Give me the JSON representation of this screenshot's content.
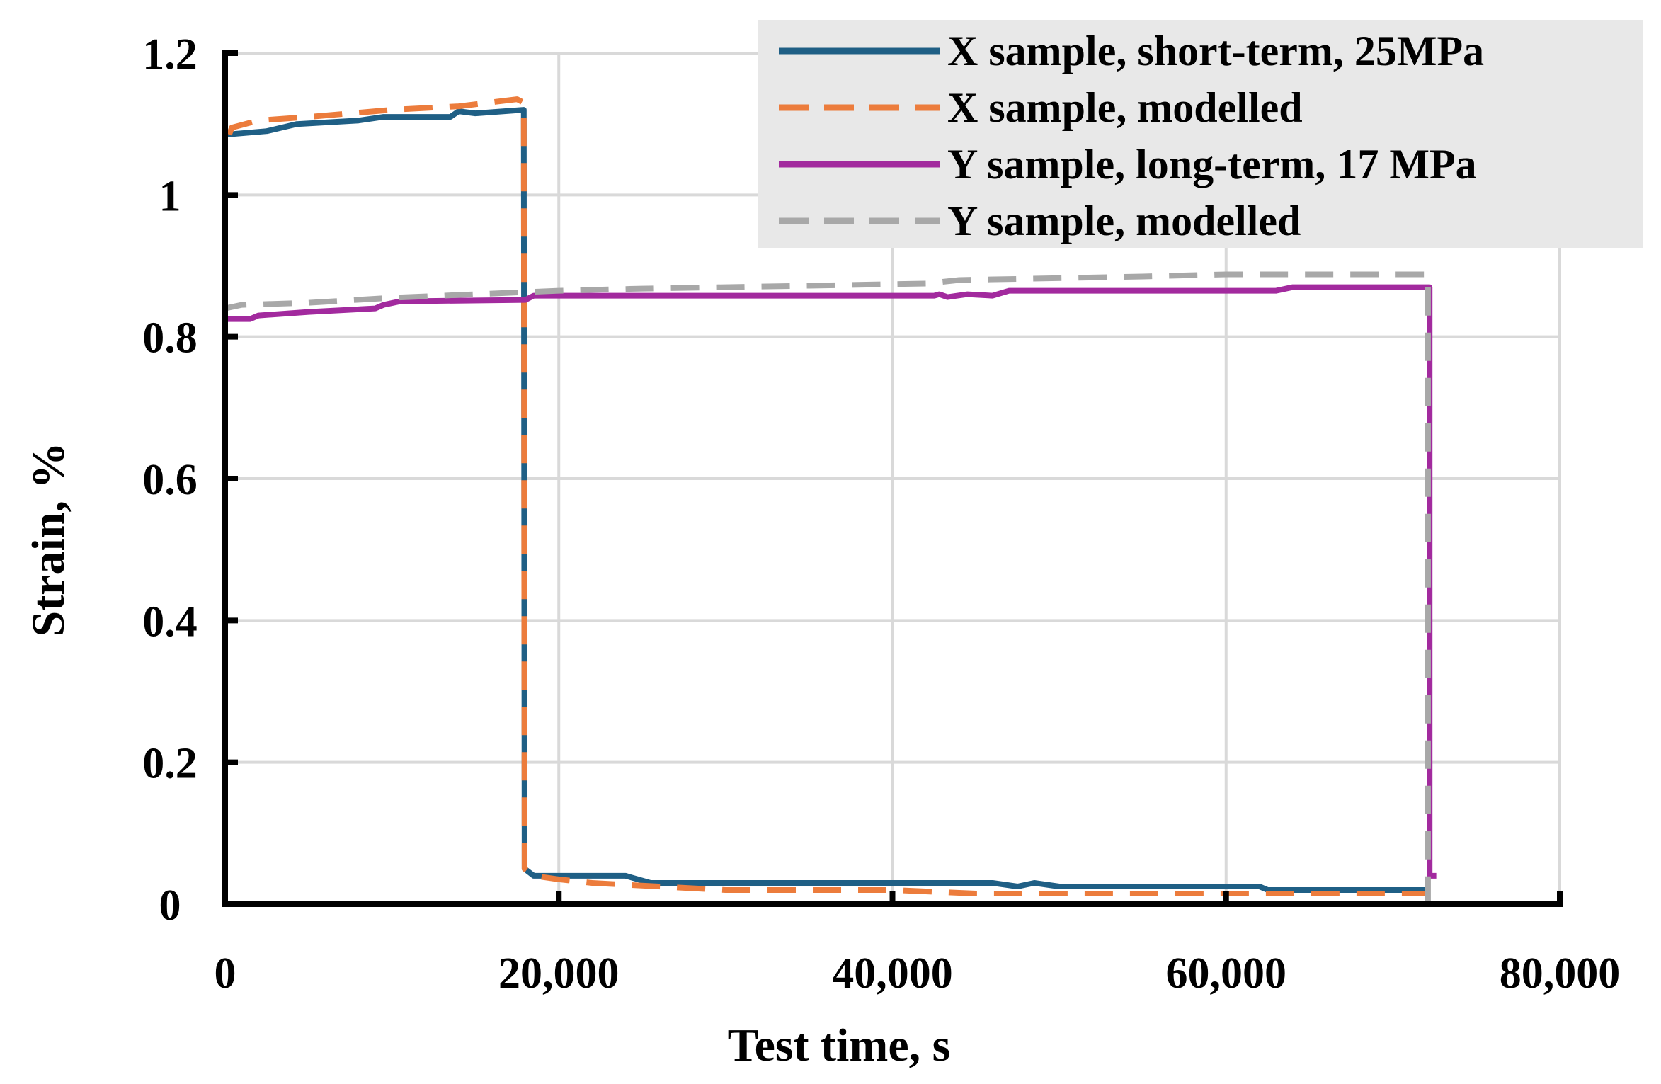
{
  "chart_data": {
    "type": "line",
    "xlabel": "Test time, s",
    "ylabel": "Strain, %",
    "xlim": [
      0,
      80000
    ],
    "ylim": [
      0,
      1.2
    ],
    "x_ticks": [
      {
        "value": 0,
        "label": "0"
      },
      {
        "value": 20000,
        "label": "20,000"
      },
      {
        "value": 40000,
        "label": "40,000"
      },
      {
        "value": 60000,
        "label": "60,000"
      },
      {
        "value": 80000,
        "label": "80,000"
      }
    ],
    "y_ticks": [
      {
        "value": 0,
        "label": "0"
      },
      {
        "value": 0.2,
        "label": "0.2"
      },
      {
        "value": 0.4,
        "label": "0.4"
      },
      {
        "value": 0.6,
        "label": "0.6"
      },
      {
        "value": 0.8,
        "label": "0.8"
      },
      {
        "value": 1.0,
        "label": "1"
      },
      {
        "value": 1.2,
        "label": "1.2"
      }
    ],
    "grid": true,
    "legend_position": "top-right",
    "series": [
      {
        "name": "X sample, short-term, 25MPa",
        "color": "#1f5f85",
        "dash": "solid",
        "points": [
          [
            0,
            0
          ],
          [
            0,
            1.085
          ],
          [
            2500,
            1.09
          ],
          [
            4300,
            1.1
          ],
          [
            8000,
            1.105
          ],
          [
            9500,
            1.11
          ],
          [
            13500,
            1.11
          ],
          [
            14000,
            1.118
          ],
          [
            15000,
            1.115
          ],
          [
            17900,
            1.12
          ],
          [
            17950,
            0.05
          ],
          [
            18500,
            0.04
          ],
          [
            24000,
            0.04
          ],
          [
            25500,
            0.03
          ],
          [
            46000,
            0.03
          ],
          [
            47500,
            0.025
          ],
          [
            48500,
            0.03
          ],
          [
            50000,
            0.025
          ],
          [
            62000,
            0.025
          ],
          [
            62500,
            0.02
          ],
          [
            72000,
            0.02
          ]
        ]
      },
      {
        "name": "X sample, modelled",
        "color": "#ec7c3c",
        "dash": "dashed",
        "points": [
          [
            0,
            0
          ],
          [
            0,
            1.07
          ],
          [
            400,
            1.095
          ],
          [
            2000,
            1.105
          ],
          [
            5000,
            1.11
          ],
          [
            10000,
            1.12
          ],
          [
            14000,
            1.125
          ],
          [
            17500,
            1.135
          ],
          [
            17900,
            1.13
          ],
          [
            17950,
            0.05
          ],
          [
            18500,
            0.04
          ],
          [
            20000,
            0.035
          ],
          [
            22000,
            0.03
          ],
          [
            26000,
            0.025
          ],
          [
            30000,
            0.02
          ],
          [
            40000,
            0.02
          ],
          [
            45000,
            0.015
          ],
          [
            72000,
            0.015
          ]
        ]
      },
      {
        "name": "Y sample, long-term, 17 MPa",
        "color": "#a22a9e",
        "dash": "solid",
        "points": [
          [
            0,
            0
          ],
          [
            0,
            0.825
          ],
          [
            1500,
            0.825
          ],
          [
            2000,
            0.83
          ],
          [
            5000,
            0.835
          ],
          [
            9000,
            0.84
          ],
          [
            9500,
            0.845
          ],
          [
            10500,
            0.85
          ],
          [
            18000,
            0.852
          ],
          [
            18500,
            0.858
          ],
          [
            42500,
            0.858
          ],
          [
            42800,
            0.86
          ],
          [
            43300,
            0.856
          ],
          [
            44500,
            0.86
          ],
          [
            46000,
            0.858
          ],
          [
            47000,
            0.865
          ],
          [
            63000,
            0.865
          ],
          [
            64000,
            0.87
          ],
          [
            72200,
            0.87
          ],
          [
            72200,
            0.04
          ],
          [
            72600,
            0.04
          ]
        ]
      },
      {
        "name": "Y sample, modelled",
        "color": "#a8a8a8",
        "dash": "dashed",
        "points": [
          [
            0,
            0
          ],
          [
            0,
            0.84
          ],
          [
            1000,
            0.845
          ],
          [
            5000,
            0.848
          ],
          [
            10000,
            0.855
          ],
          [
            15000,
            0.86
          ],
          [
            20000,
            0.865
          ],
          [
            25000,
            0.868
          ],
          [
            35000,
            0.872
          ],
          [
            42000,
            0.875
          ],
          [
            44000,
            0.88
          ],
          [
            55000,
            0.885
          ],
          [
            60000,
            0.888
          ],
          [
            72000,
            0.888
          ],
          [
            72100,
            0.888
          ],
          [
            72100,
            0.0
          ]
        ]
      }
    ]
  }
}
